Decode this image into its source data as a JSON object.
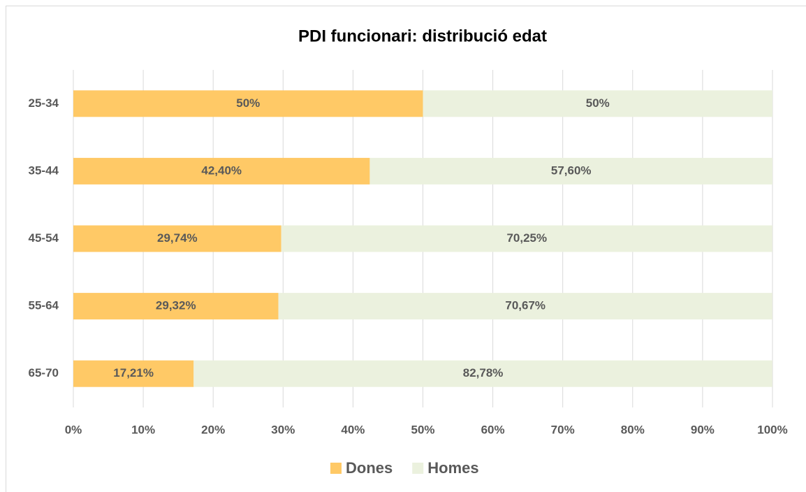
{
  "chart_data": {
    "type": "bar",
    "orientation": "horizontal",
    "stacked": true,
    "title": "PDI funcionari: distribució edat",
    "categories": [
      "25-34",
      "35-44",
      "45-54",
      "55-64",
      "65-70"
    ],
    "series": [
      {
        "name": "Dones",
        "color": "#ffc966",
        "values": [
          50,
          42.4,
          29.74,
          29.32,
          17.21
        ],
        "value_labels": [
          "50%",
          "42,40%",
          "29,74%",
          "29,32%",
          "17,21%"
        ]
      },
      {
        "name": "Homes",
        "color": "#ebf1de",
        "values": [
          50,
          57.6,
          70.25,
          70.67,
          82.78
        ],
        "value_labels": [
          "50%",
          "57,60%",
          "70,25%",
          "70,67%",
          "82,78%"
        ]
      }
    ],
    "xlim": [
      0,
      100
    ],
    "xticks": [
      {
        "value": 0,
        "label": "0%"
      },
      {
        "value": 10,
        "label": "10%"
      },
      {
        "value": 20,
        "label": "20%"
      },
      {
        "value": 30,
        "label": "30%"
      },
      {
        "value": 40,
        "label": "40%"
      },
      {
        "value": 50,
        "label": "50%"
      },
      {
        "value": 60,
        "label": "60%"
      },
      {
        "value": 70,
        "label": "70%"
      },
      {
        "value": 80,
        "label": "80%"
      },
      {
        "value": 90,
        "label": "90%"
      },
      {
        "value": 100,
        "label": "100%"
      }
    ],
    "grid": true,
    "legend": "bottom"
  }
}
